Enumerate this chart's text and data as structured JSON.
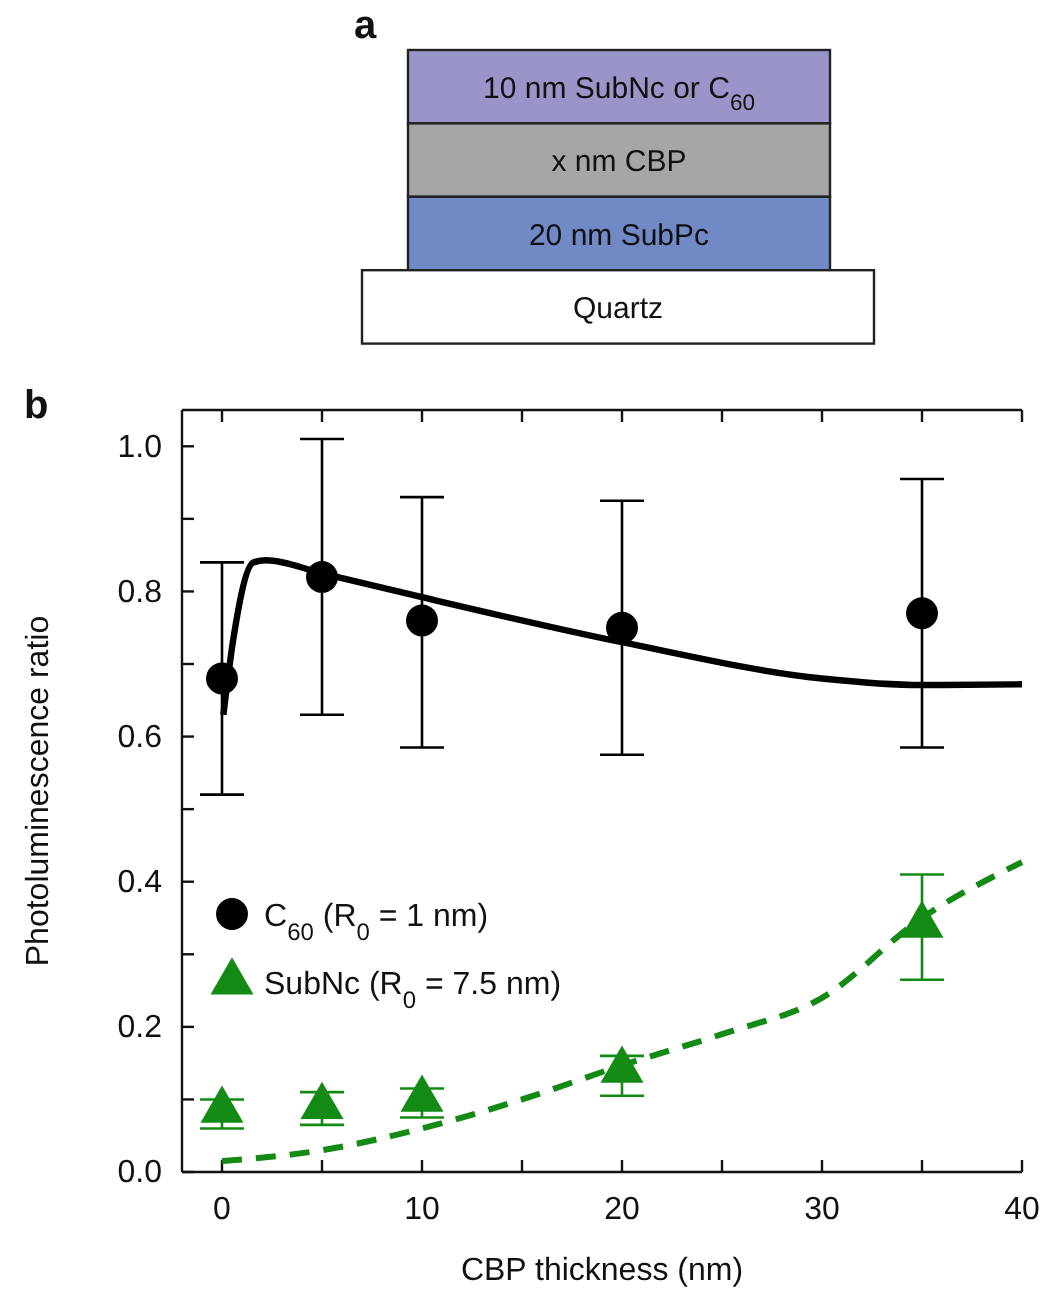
{
  "chart_data": [
    {
      "type": "other",
      "title": "a",
      "annotations": [
        "10 nm SubNc or C$_{60}$",
        "x nm CBP",
        "20 nm SubPc",
        "Quartz"
      ]
    },
    {
      "type": "scatter",
      "title": "b",
      "xlabel": "CBP thickness (nm)",
      "ylabel": "Photoluminescence ratio",
      "xlim": [
        -2,
        40
      ],
      "ylim": [
        0,
        1.05
      ],
      "xticks": [
        0,
        {
          "value": 5,
          "label": null
        },
        10,
        {
          "value": 15,
          "label": null
        },
        20,
        {
          "value": 25,
          "label": null
        },
        30,
        {
          "value": 35,
          "label": null
        },
        40
      ],
      "yticks": [
        {
          "value": 0,
          "label": "0.0"
        },
        {
          "value": 0.1,
          "label": null
        },
        {
          "value": 0.2,
          "label": "0.2"
        },
        {
          "value": 0.3,
          "label": null
        },
        {
          "value": 0.4,
          "label": "0.4"
        },
        {
          "value": 0.5,
          "label": null
        },
        {
          "value": 0.6,
          "label": "0.6"
        },
        {
          "value": 0.7,
          "label": null
        },
        {
          "value": 0.8,
          "label": "0.8"
        },
        {
          "value": 0.9,
          "label": null
        },
        {
          "value": 1.0,
          "label": "1.0"
        }
      ],
      "legend": "left",
      "grid": false,
      "series": [
        {
          "name": "C$_{60}$ (R$_{0}$ = 1 nm)",
          "type": "scatter",
          "marker": "circle",
          "color": "#000000",
          "x": [
            0,
            5,
            10,
            20,
            35
          ],
          "values": [
            0.68,
            0.82,
            0.76,
            0.75,
            0.77
          ],
          "errors": [
            [
              0.52,
              0.84
            ],
            [
              0.63,
              1.01
            ],
            [
              0.585,
              0.93
            ],
            [
              0.575,
              0.925
            ],
            [
              0.585,
              0.955
            ]
          ]
        },
        {
          "name": "SubNc (R$_{0}$ = 7.5 nm)",
          "type": "scatter",
          "marker": "triangle",
          "color": "#138a13",
          "x": [
            0,
            5,
            10,
            20,
            35
          ],
          "values": [
            0.085,
            0.09,
            0.1,
            0.14,
            0.34
          ],
          "errors": [
            [
              0.06,
              0.1
            ],
            [
              0.065,
              0.11
            ],
            [
              0.075,
              0.115
            ],
            [
              0.105,
              0.16
            ],
            [
              0.265,
              0.41
            ]
          ]
        },
        {
          "type": "line",
          "line_style": "solid",
          "color": "#000000",
          "x": [
            0.07,
            0.57,
            1.57,
            2.2,
            5,
            10,
            20,
            30,
            35,
            40
          ],
          "values": [
            0.63,
            0.735,
            0.84,
            0.843,
            0.825,
            0.792,
            0.73,
            0.68,
            0.671,
            0.672
          ]
        },
        {
          "type": "line",
          "line_style": "dashed",
          "color": "#138a13",
          "x": [
            0,
            5,
            10,
            15,
            20,
            25,
            30,
            35,
            40
          ],
          "values": [
            0.015,
            0.03,
            0.06,
            0.1,
            0.147,
            0.19,
            0.24,
            0.35,
            0.427
          ]
        }
      ]
    }
  ]
}
